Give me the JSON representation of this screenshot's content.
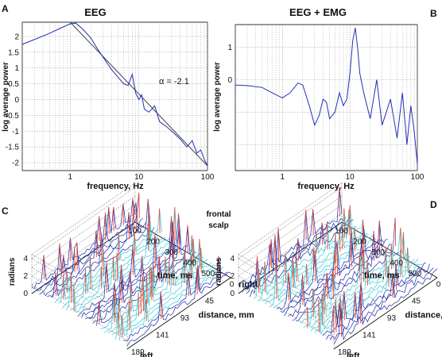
{
  "panels": {
    "A": {
      "letter": "A",
      "title": "EEG",
      "xlabel": "frequency, Hz",
      "ylabel": "log average power",
      "annotation": "α  = -2.1",
      "xticklabels": [
        "1",
        "10",
        "100"
      ],
      "yticklabels": [
        "2",
        "1.5",
        "1",
        "0.5",
        "0",
        "-0.5",
        "-1",
        "-1.5",
        "-2"
      ]
    },
    "B": {
      "letter": "B",
      "title": "EEG + EMG",
      "xlabel": "frequency, Hz",
      "ylabel": "log average power",
      "xticklabels": [
        "1",
        "10",
        "100"
      ],
      "yticklabels": [
        "1",
        "0"
      ]
    },
    "C": {
      "letter": "C",
      "zlabel": "radians",
      "ylabel": "time, ms",
      "xlabel": "distance, mm",
      "time_ticks": [
        "100",
        "200",
        "300",
        "400",
        "500"
      ],
      "distance_ticks": [
        "189",
        "141",
        "93",
        "45",
        "0"
      ],
      "zticks": [
        "4",
        "2",
        "0"
      ],
      "left_label": "left",
      "right_label": "right"
    },
    "D": {
      "letter": "D",
      "zlabel": "radians",
      "ylabel": "time, ms",
      "xlabel": "distance, mm",
      "time_ticks": [
        "100",
        "200",
        "300",
        "400",
        "500"
      ],
      "distance_ticks": [
        "189",
        "141",
        "93",
        "45",
        "0"
      ],
      "zticks": [
        "4",
        "2",
        "0"
      ],
      "left_label": "left",
      "right_label": "right"
    },
    "frontal_scalp": [
      "frontal",
      "scalp"
    ]
  },
  "colors": {
    "line": "#2330b8",
    "fit": "#444444",
    "grid": "#9a9a9a",
    "axis": "#000000",
    "surface_dark": "#1a2aa8",
    "surface_light": "#34c8d8",
    "surface_peak": "#ff4020"
  },
  "chart_data": [
    {
      "type": "line",
      "title": "EEG",
      "xlabel": "frequency, Hz",
      "ylabel": "log average power",
      "xscale": "log",
      "xlim": [
        0.2,
        100
      ],
      "ylim": [
        -2.25,
        2.45
      ],
      "grid": true,
      "series": [
        {
          "x": [
            0.2,
            0.3,
            0.5,
            0.7,
            1.0,
            1.2,
            1.5,
            2.0,
            2.5,
            3.0,
            4.0,
            5.0,
            6.0,
            7.0,
            8.0,
            9.0,
            10.0,
            11.0,
            12.0,
            14.0,
            17.0,
            20.0,
            25.0,
            30.0,
            40.0,
            50.0,
            60.0,
            70.0,
            80.0,
            90.0,
            100.0
          ],
          "y": [
            1.75,
            1.9,
            2.1,
            2.25,
            2.4,
            2.42,
            2.25,
            1.95,
            1.6,
            1.35,
            0.95,
            0.7,
            0.5,
            0.45,
            0.8,
            0.2,
            0.0,
            0.15,
            -0.3,
            -0.4,
            -0.2,
            -0.7,
            -0.85,
            -1.0,
            -1.25,
            -1.5,
            -1.3,
            -1.7,
            -1.6,
            -1.9,
            -2.1
          ]
        }
      ],
      "fit": {
        "slope": -2.1,
        "x": [
          1.0,
          100.0
        ],
        "y": [
          2.45,
          -2.1
        ]
      }
    },
    {
      "type": "line",
      "title": "EEG + EMG",
      "xlabel": "frequency, Hz",
      "ylabel": "log average power",
      "xscale": "log",
      "xlim": [
        0.2,
        100
      ],
      "ylim": [
        -0.9,
        1.35
      ],
      "grid": true,
      "series": [
        {
          "x": [
            0.2,
            0.3,
            0.5,
            0.7,
            1.0,
            1.3,
            1.7,
            2.0,
            2.5,
            3.0,
            3.5,
            4.0,
            4.5,
            5.0,
            6.0,
            7.0,
            8.0,
            9.0,
            10.0,
            11.0,
            12.0,
            13.0,
            14.0,
            16.0,
            20.0,
            25.0,
            30.0,
            40.0,
            50.0,
            60.0,
            70.0,
            80.0,
            90.0,
            100.0
          ],
          "y": [
            0.42,
            0.41,
            0.38,
            0.3,
            0.22,
            0.3,
            0.45,
            0.42,
            0.1,
            -0.2,
            -0.05,
            0.2,
            0.15,
            -0.1,
            0.0,
            0.3,
            0.1,
            0.2,
            0.6,
            1.1,
            1.3,
            1.0,
            0.6,
            0.3,
            -0.1,
            0.5,
            -0.2,
            0.2,
            -0.4,
            0.3,
            -0.5,
            0.1,
            -0.3,
            -0.8
          ]
        }
      ]
    }
  ]
}
